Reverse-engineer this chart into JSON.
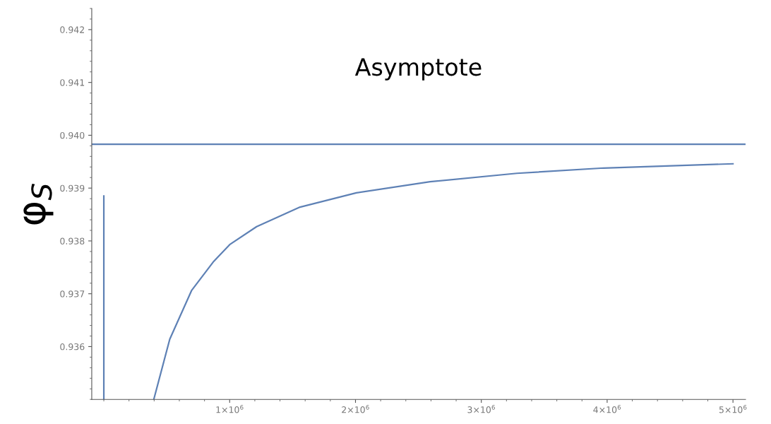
{
  "chart_data": {
    "type": "line",
    "ylabel": "φ$_{S}$",
    "series": [
      {
        "color": "#5e81b5",
        "x": [
          397000,
          524000,
          697000,
          869000,
          1000000,
          1214000,
          1559000,
          2007000,
          2593000,
          3283000,
          3972000,
          5000000
        ],
        "values": [
          0.935,
          0.93614,
          0.93706,
          0.9376,
          0.93793,
          0.93827,
          0.93864,
          0.93891,
          0.93912,
          0.93928,
          0.93938,
          0.93946
        ]
      },
      {
        "color": "#5e81b5",
        "x": [
          0,
          0
        ],
        "values": [
          0.935,
          0.93885
        ]
      }
    ],
    "ref_lines": [
      {
        "axis": "y",
        "value": 0.93983,
        "label": "Asymptote",
        "color": "#5e81b5",
        "line_style": "solid"
      }
    ],
    "xlim": [
      -96000,
      5100000
    ],
    "ylim": [
      0.935,
      0.9424
    ],
    "xticks": [
      {
        "value": 1000000,
        "label": "1×10$^{6}$"
      },
      {
        "value": 2000000,
        "label": "2×10$^{6}$"
      },
      {
        "value": 3000000,
        "label": "3×10$^{6}$"
      },
      {
        "value": 4000000,
        "label": "4×10$^{6}$"
      },
      {
        "value": 5000000,
        "label": "5×10$^{6}$"
      }
    ],
    "yticks": [
      {
        "value": 0.936,
        "label": "0.936"
      },
      {
        "value": 0.937,
        "label": "0.937"
      },
      {
        "value": 0.938,
        "label": "0.938"
      },
      {
        "value": 0.939,
        "label": "0.939"
      },
      {
        "value": 0.94,
        "label": "0.940"
      },
      {
        "value": 0.941,
        "label": "0.941"
      },
      {
        "value": 0.942,
        "label": "0.942"
      }
    ],
    "grid": false,
    "legend": false,
    "marker": "none",
    "line_style": "solid"
  }
}
